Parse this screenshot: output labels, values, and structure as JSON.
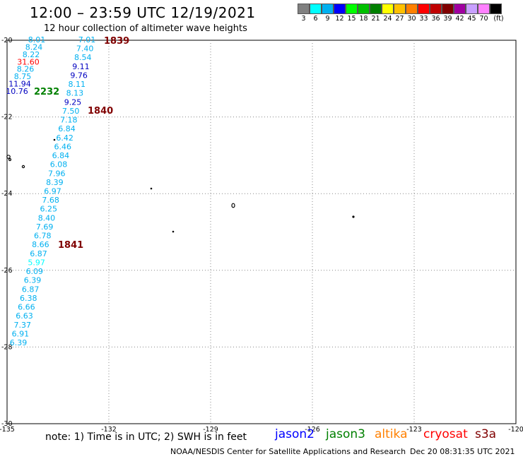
{
  "header": {
    "title": "12:00 – 23:59 UTC 12/19/2021",
    "subtitle": "12 hour collection of altimeter wave heights"
  },
  "legend": {
    "colors": [
      "#808080",
      "#00ffff",
      "#00b0f0",
      "#0000ff",
      "#00ff00",
      "#00c000",
      "#008000",
      "#ffff00",
      "#ffc000",
      "#ff8000",
      "#ff0000",
      "#c00000",
      "#800000",
      "#a000a0",
      "#c8a0ff",
      "#ff80ff",
      "#000000"
    ],
    "labels": [
      "3",
      "6",
      "9",
      "12",
      "15",
      "18",
      "21",
      "24",
      "27",
      "30",
      "33",
      "36",
      "39",
      "42",
      "45",
      "70",
      "(ft)"
    ]
  },
  "axes": {
    "lon_labels": [
      "-135",
      "-132",
      "-129",
      "-126",
      "-123",
      "-120"
    ],
    "lat_labels": [
      "-20",
      "-22",
      "-24",
      "-26",
      "-28",
      "-30"
    ]
  },
  "passes": [
    {
      "time": "1839",
      "color": "#800000"
    },
    {
      "time": "1840",
      "color": "#800000"
    },
    {
      "time": "1841",
      "color": "#800000"
    },
    {
      "time": "2232",
      "color": "#008000"
    }
  ],
  "track_a": {
    "values": [
      "7.01",
      "7.40",
      "8.54",
      "9.11",
      "9.76",
      "8.11",
      "8.13",
      "9.25",
      "7.50",
      "7.18",
      "6.84",
      "6.42",
      "6.46",
      "6.84",
      "6.08",
      "7.96",
      "8.39",
      "6.97",
      "7.68",
      "6.25",
      "8.40",
      "7.69",
      "6.78",
      "8.66",
      "6.87",
      "5.97",
      "6.09",
      "6.39",
      "6.87",
      "6.38",
      "6.66",
      "6.63",
      "7.37",
      "6.91",
      "6.39"
    ],
    "colors": [
      "#00b0f0",
      "#00b0f0",
      "#00b0f0",
      "#0000c0",
      "#0000c0",
      "#00b0f0",
      "#00b0f0",
      "#0000c0",
      "#00b0f0",
      "#00b0f0",
      "#00b0f0",
      "#00b0f0",
      "#00b0f0",
      "#00b0f0",
      "#00b0f0",
      "#00b0f0",
      "#00b0f0",
      "#00b0f0",
      "#00b0f0",
      "#00b0f0",
      "#00b0f0",
      "#00b0f0",
      "#00b0f0",
      "#00b0f0",
      "#00b0f0",
      "#00ffff",
      "#00b0f0",
      "#00b0f0",
      "#00b0f0",
      "#00b0f0",
      "#00b0f0",
      "#00b0f0",
      "#00b0f0",
      "#00b0f0",
      "#00b0f0"
    ]
  },
  "track_b": {
    "values": [
      "8.01",
      "8.24",
      "8.22",
      "31.60",
      "8.26",
      "8.75",
      "11.94",
      "10.76"
    ],
    "colors": [
      "#00b0f0",
      "#00b0f0",
      "#00b0f0",
      "#ff0000",
      "#00b0f0",
      "#00b0f0",
      "#0000c0",
      "#0000c0"
    ]
  },
  "footer": {
    "note": "note:  1) Time is in UTC;  2) SWH is in feet",
    "satellites": [
      {
        "name": "jason2",
        "color": "#0000ff"
      },
      {
        "name": "jason3",
        "color": "#008000"
      },
      {
        "name": "altika",
        "color": "#ff8000"
      },
      {
        "name": "cryosat",
        "color": "#ff0000"
      },
      {
        "name": "s3a",
        "color": "#800000"
      }
    ],
    "credit": "NOAA/NESDIS Center for Satellite Applications and Research",
    "stamp": "Dec 20 08:31:35 UTC 2021"
  }
}
